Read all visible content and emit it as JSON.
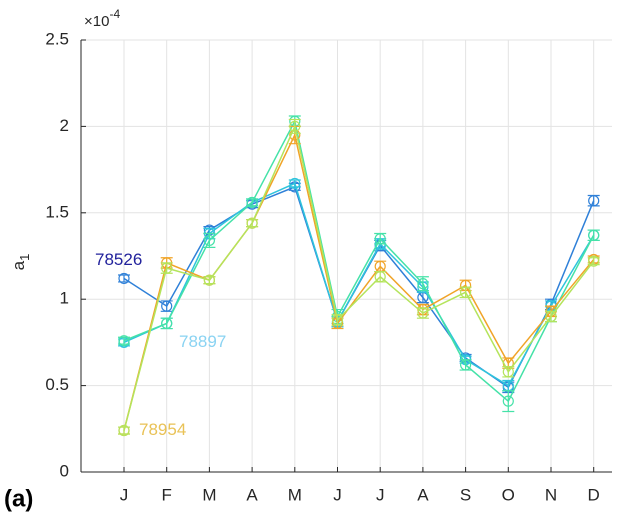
{
  "chart_data": {
    "type": "line",
    "panel_label": "(a)",
    "y_label": "a",
    "y_label_subscript": "1",
    "y_exponent_base": "×10",
    "y_exponent": "-4",
    "categories": [
      "J",
      "F",
      "M",
      "A",
      "M",
      "J",
      "J",
      "A",
      "S",
      "O",
      "N",
      "D"
    ],
    "ylim": [
      0,
      2.5
    ],
    "yticks": [
      0,
      0.5,
      1,
      1.5,
      2,
      2.5
    ],
    "grid": true,
    "series": [
      {
        "name": "78526",
        "color": "#2f80d8",
        "label_color": "#22229c",
        "values": [
          1.12,
          0.96,
          1.4,
          1.55,
          1.65,
          0.87,
          1.31,
          1.01,
          0.66,
          0.49,
          0.97,
          1.57
        ],
        "errors": [
          0.02,
          0.03,
          0.02,
          0.02,
          0.02,
          0.03,
          0.03,
          0.03,
          0.02,
          0.03,
          0.03,
          0.03
        ]
      },
      {
        "name": "78897",
        "color": "#2fc4dc",
        "label_color": "#8ad3f2",
        "values": [
          0.75,
          0.86,
          1.38,
          1.56,
          1.67,
          0.87,
          1.32,
          1.07,
          0.65,
          0.5,
          0.96,
          1.37
        ],
        "errors": [
          0.02,
          0.03,
          0.03,
          0.02,
          0.02,
          0.03,
          0.03,
          0.03,
          0.02,
          0.03,
          0.03,
          0.03
        ]
      },
      {
        "color": "#45e2a8",
        "values": [
          0.76,
          0.86,
          1.34,
          1.56,
          2.03,
          0.9,
          1.35,
          1.09,
          0.62,
          0.41,
          0.9,
          1.37
        ],
        "errors": [
          0.02,
          0.03,
          0.04,
          0.02,
          0.03,
          0.04,
          0.03,
          0.04,
          0.03,
          0.06,
          0.03,
          0.03
        ]
      },
      {
        "name": "78954",
        "color": "#f0a428",
        "label_color": "#e9c256",
        "values": [
          0.24,
          1.21,
          1.11,
          1.44,
          1.95,
          0.86,
          1.19,
          0.94,
          1.08,
          0.63,
          0.93,
          1.23
        ],
        "errors": [
          0.02,
          0.03,
          0.02,
          0.02,
          0.05,
          0.03,
          0.03,
          0.03,
          0.03,
          0.03,
          0.03,
          0.02
        ]
      },
      {
        "color": "#b4e45c",
        "values": [
          0.24,
          1.18,
          1.11,
          1.44,
          2.0,
          0.88,
          1.13,
          0.92,
          1.04,
          0.58,
          0.9,
          1.22
        ],
        "errors": [
          0.02,
          0.03,
          0.02,
          0.02,
          0.04,
          0.03,
          0.03,
          0.03,
          0.03,
          0.03,
          0.03,
          0.02
        ]
      }
    ]
  }
}
